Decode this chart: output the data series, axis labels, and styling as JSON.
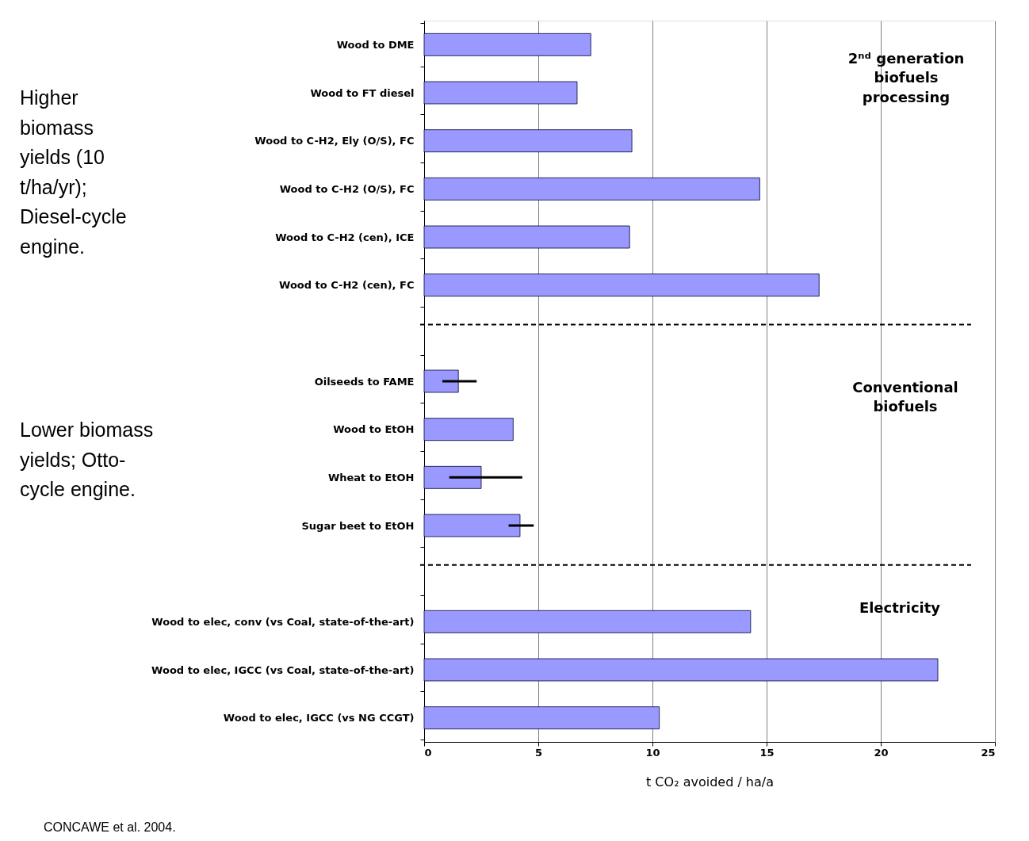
{
  "chart_data": {
    "type": "bar",
    "orientation": "horizontal",
    "categories": [
      "Wood to DME",
      "Wood to FT diesel",
      "Wood to C-H2, Ely (O/S), FC",
      "Wood to C-H2 (O/S), FC",
      "Wood to C-H2 (cen), ICE",
      "Wood to C-H2 (cen), FC",
      null,
      "Oilseeds to FAME",
      "Wood to EtOH",
      "Wheat to EtOH",
      "Sugar beet to EtOH",
      null,
      "Wood to elec, conv (vs Coal, state-of-the-art)",
      "Wood to elec, IGCC (vs Coal, state-of-the-art)",
      "Wood to elec, IGCC (vs NG CCGT)"
    ],
    "values": [
      7.3,
      6.7,
      9.1,
      14.7,
      9.0,
      17.3,
      null,
      1.5,
      3.9,
      2.5,
      4.2,
      null,
      14.3,
      22.5,
      10.3
    ],
    "errors": [
      null,
      null,
      null,
      null,
      null,
      null,
      null,
      [
        0.8,
        2.3
      ],
      null,
      [
        1.1,
        4.3
      ],
      [
        3.7,
        4.8
      ],
      null,
      null,
      null,
      null
    ],
    "color": "#9999ff",
    "xlim": [
      0,
      25
    ],
    "xticks": [
      0,
      5,
      10,
      15,
      20,
      25
    ],
    "xlabel": "t CO₂ avoided / ha/a",
    "grid": "x",
    "ref_lines": [
      {
        "axis": "y",
        "value": null,
        "line_style": "dashed"
      },
      {
        "axis": "y",
        "value": null,
        "line_style": "dashed"
      }
    ],
    "annotations": [
      "Higher biomass yields (10 t/ha/yr); Diesel-cycle engine.",
      "Lower biomass yields; Otto-cycle engine.",
      "2ⁿᵈ generation biofuels processing",
      "Conventional biofuels",
      "Electricity",
      "CONCAWE et al. 2004."
    ]
  }
}
